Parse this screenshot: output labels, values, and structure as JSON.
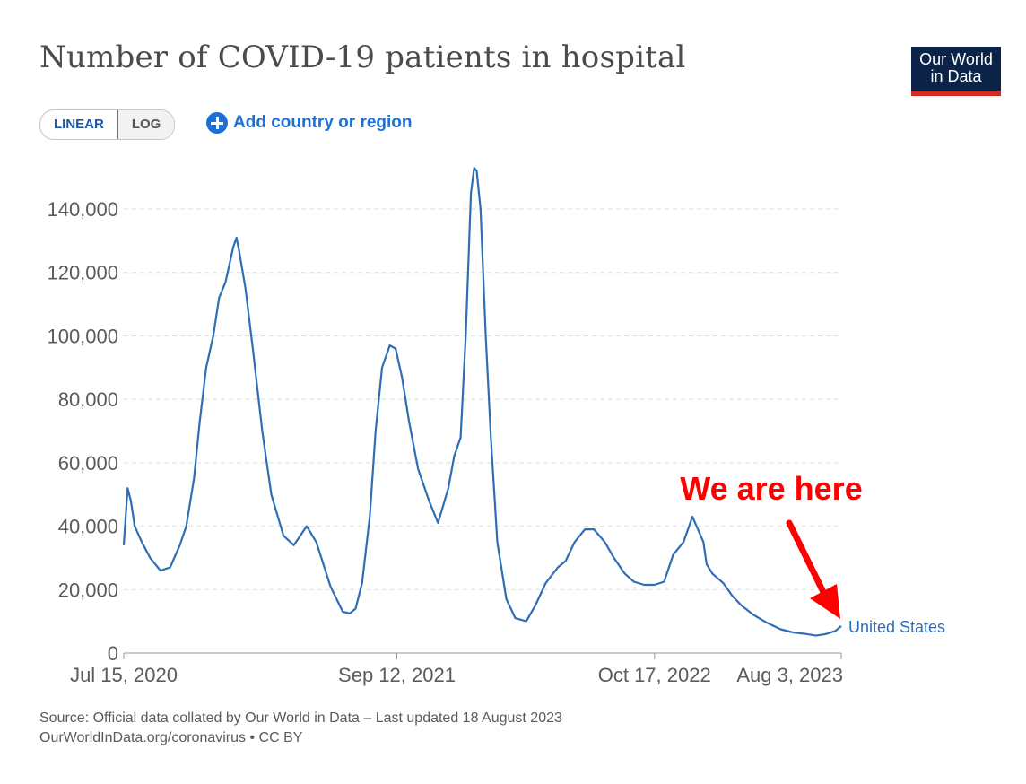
{
  "header": {
    "title": "Number of COVID-19 patients in hospital",
    "logo_line1": "Our World",
    "logo_line2": "in Data"
  },
  "controls": {
    "linear_label": "LINEAR",
    "log_label": "LOG",
    "add_label": "Add country or region"
  },
  "annotation": {
    "text": "We are here",
    "color": "#ff0000"
  },
  "footer": {
    "source": "Source: Official data collated by Our World in Data – Last updated 18 August 2023",
    "url": "OurWorldInData.org/coronavirus • CC BY"
  },
  "colors": {
    "line": "#2f6db5",
    "grid": "#dddddd",
    "axis_text": "#5b5b5b",
    "logo_bg": "#0b2347",
    "logo_bar": "#d42b21"
  },
  "chart_data": {
    "type": "line",
    "title": "Number of COVID-19 patients in hospital",
    "xlabel": "",
    "ylabel": "",
    "ylim": [
      0,
      155000
    ],
    "yticks": [
      0,
      20000,
      40000,
      60000,
      80000,
      100000,
      120000,
      140000
    ],
    "ytick_labels": [
      "0",
      "20,000",
      "40,000",
      "60,000",
      "80,000",
      "100,000",
      "120,000",
      "140,000"
    ],
    "xlim": [
      "2020-07-15",
      "2023-08-03"
    ],
    "xticks": [
      "2020-07-15",
      "2021-09-12",
      "2022-10-17",
      "2023-08-03"
    ],
    "xtick_labels": [
      "Jul 15, 2020",
      "Sep 12, 2021",
      "Oct 17, 2022",
      "Aug 3, 2023"
    ],
    "grid": "horizontal dashed",
    "series": [
      {
        "name": "United States",
        "color": "#2f6db5",
        "x": [
          "2020-07-15",
          "2020-07-21",
          "2020-07-26",
          "2020-08-01",
          "2020-08-12",
          "2020-08-25",
          "2020-09-10",
          "2020-09-25",
          "2020-10-10",
          "2020-10-20",
          "2020-11-01",
          "2020-11-10",
          "2020-11-20",
          "2020-12-01",
          "2020-12-10",
          "2020-12-20",
          "2021-01-01",
          "2021-01-06",
          "2021-01-10",
          "2021-01-20",
          "2021-02-01",
          "2021-02-15",
          "2021-03-01",
          "2021-03-20",
          "2021-04-05",
          "2021-04-15",
          "2021-04-25",
          "2021-05-10",
          "2021-06-01",
          "2021-06-20",
          "2021-07-01",
          "2021-07-10",
          "2021-07-20",
          "2021-08-01",
          "2021-08-10",
          "2021-08-20",
          "2021-09-01",
          "2021-09-10",
          "2021-09-20",
          "2021-10-01",
          "2021-10-15",
          "2021-11-01",
          "2021-11-15",
          "2021-12-01",
          "2021-12-10",
          "2021-12-20",
          "2021-12-28",
          "2022-01-05",
          "2022-01-10",
          "2022-01-14",
          "2022-01-20",
          "2022-01-28",
          "2022-02-05",
          "2022-02-15",
          "2022-03-01",
          "2022-03-15",
          "2022-04-01",
          "2022-04-15",
          "2022-05-01",
          "2022-05-20",
          "2022-06-01",
          "2022-06-15",
          "2022-07-01",
          "2022-07-15",
          "2022-08-01",
          "2022-08-15",
          "2022-09-01",
          "2022-09-15",
          "2022-10-01",
          "2022-10-17",
          "2022-11-01",
          "2022-11-15",
          "2022-12-01",
          "2022-12-15",
          "2023-01-01",
          "2023-01-06",
          "2023-01-15",
          "2023-02-01",
          "2023-02-15",
          "2023-03-01",
          "2023-03-20",
          "2023-04-10",
          "2023-05-01",
          "2023-05-20",
          "2023-06-10",
          "2023-06-25",
          "2023-07-10",
          "2023-07-25",
          "2023-08-03"
        ],
        "y": [
          34000,
          52000,
          48000,
          40000,
          35000,
          30000,
          26000,
          27000,
          34000,
          40000,
          55000,
          73000,
          90000,
          100000,
          112000,
          117000,
          128000,
          131000,
          127000,
          115000,
          95000,
          70000,
          50000,
          37000,
          34000,
          37000,
          40000,
          35000,
          21000,
          13000,
          12500,
          14000,
          22000,
          43000,
          70000,
          90000,
          97000,
          96000,
          87000,
          73000,
          58000,
          48000,
          41000,
          52000,
          62000,
          68000,
          100000,
          145000,
          153000,
          152000,
          140000,
          100000,
          68000,
          35000,
          17000,
          11000,
          10000,
          15000,
          22000,
          27000,
          29000,
          35000,
          39000,
          39000,
          35000,
          30000,
          25000,
          22500,
          21500,
          21500,
          22500,
          31000,
          35000,
          43000,
          35000,
          28000,
          25000,
          22000,
          18000,
          15000,
          12000,
          9500,
          7500,
          6500,
          6000,
          5500,
          6000,
          7000,
          8500
        ]
      }
    ]
  }
}
